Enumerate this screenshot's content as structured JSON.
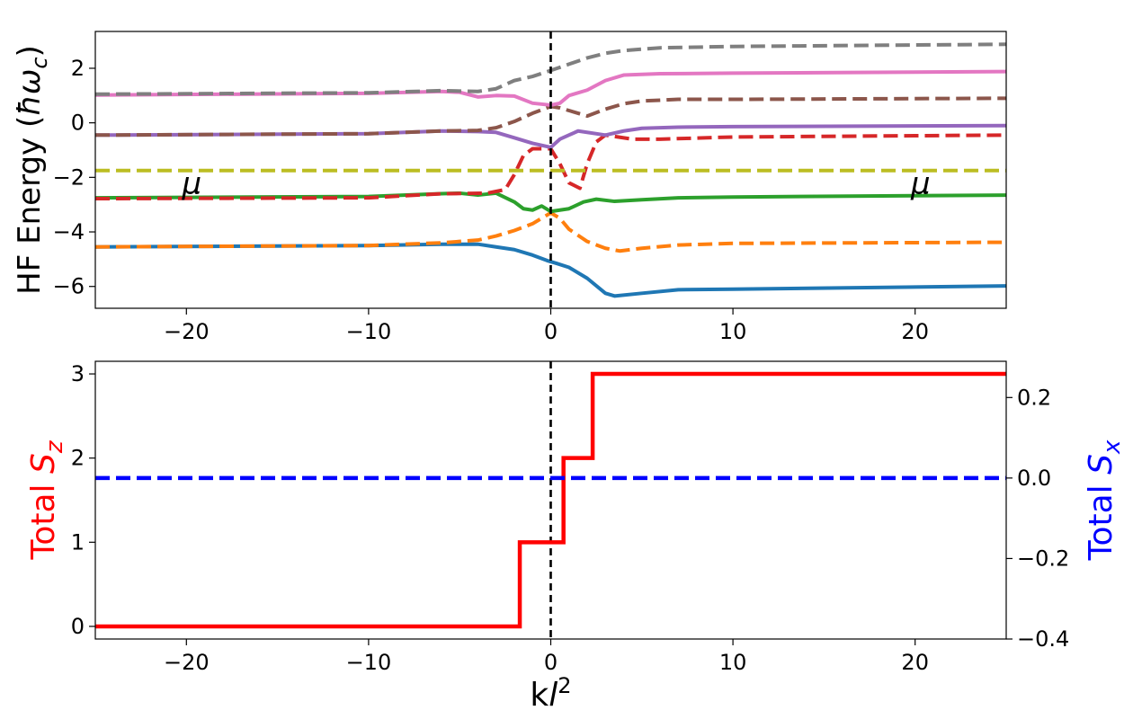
{
  "chart_data": [
    {
      "type": "line",
      "panel": "top",
      "title": "",
      "xlabel": "",
      "ylabel": "HF Energy (ħω_c)",
      "ylabel_parts": [
        "HF Energy (",
        "ħω",
        "c",
        ")"
      ],
      "xlim": [
        -25,
        25
      ],
      "ylim": [
        -6.8,
        3.35
      ],
      "xticks": [
        -20,
        -10,
        0,
        10,
        20
      ],
      "xtick_labels": [
        "−20",
        "−10",
        "0",
        "10",
        "20"
      ],
      "yticks": [
        -6,
        -4,
        -2,
        0,
        2
      ],
      "ytick_labels": [
        "−6",
        "−4",
        "−2",
        "0",
        "2"
      ],
      "grid": false,
      "legend": "none",
      "vline": {
        "x": 0,
        "style": "dashed",
        "color": "#000000"
      },
      "annotations": [
        {
          "text": "μ",
          "x": -19.7,
          "y": -2.2
        },
        {
          "text": "μ",
          "x": 20.3,
          "y": -2.2
        }
      ],
      "series": [
        {
          "color": "#1f77b4",
          "style": "solid",
          "points": [
            [
              -25,
              -4.55
            ],
            [
              -10,
              -4.5
            ],
            [
              -6,
              -4.45
            ],
            [
              -4,
              -4.45
            ],
            [
              -3,
              -4.55
            ],
            [
              -2,
              -4.65
            ],
            [
              -1,
              -4.85
            ],
            [
              -0.2,
              -5.05
            ],
            [
              0.3,
              -5.15
            ],
            [
              1,
              -5.3
            ],
            [
              2,
              -5.7
            ],
            [
              3,
              -6.25
            ],
            [
              3.5,
              -6.35
            ],
            [
              5,
              -6.25
            ],
            [
              7,
              -6.12
            ],
            [
              10,
              -6.1
            ],
            [
              25,
              -5.98
            ]
          ]
        },
        {
          "color": "#ff7f0e",
          "style": "dashed",
          "points": [
            [
              -25,
              -4.55
            ],
            [
              -10,
              -4.5
            ],
            [
              -6,
              -4.4
            ],
            [
              -4,
              -4.3
            ],
            [
              -3,
              -4.15
            ],
            [
              -2,
              -3.95
            ],
            [
              -1,
              -3.7
            ],
            [
              0,
              -3.3
            ],
            [
              0.5,
              -3.5
            ],
            [
              1,
              -3.9
            ],
            [
              2,
              -4.35
            ],
            [
              3,
              -4.6
            ],
            [
              3.8,
              -4.7
            ],
            [
              5,
              -4.6
            ],
            [
              7,
              -4.48
            ],
            [
              10,
              -4.42
            ],
            [
              25,
              -4.38
            ]
          ]
        },
        {
          "color": "#2ca02c",
          "style": "solid",
          "points": [
            [
              -25,
              -2.75
            ],
            [
              -10,
              -2.7
            ],
            [
              -6,
              -2.6
            ],
            [
              -5,
              -2.58
            ],
            [
              -4,
              -2.65
            ],
            [
              -3,
              -2.58
            ],
            [
              -2,
              -2.9
            ],
            [
              -1.5,
              -3.15
            ],
            [
              -1,
              -3.2
            ],
            [
              -0.5,
              -3.05
            ],
            [
              0,
              -3.25
            ],
            [
              1,
              -3.15
            ],
            [
              1.8,
              -2.9
            ],
            [
              2.5,
              -2.8
            ],
            [
              3.5,
              -2.88
            ],
            [
              5,
              -2.82
            ],
            [
              7,
              -2.75
            ],
            [
              10,
              -2.72
            ],
            [
              25,
              -2.65
            ]
          ]
        },
        {
          "color": "#d62728",
          "style": "dashed",
          "points": [
            [
              -25,
              -2.78
            ],
            [
              -10,
              -2.75
            ],
            [
              -6,
              -2.6
            ],
            [
              -3.5,
              -2.58
            ],
            [
              -2.5,
              -2.45
            ],
            [
              -2,
              -1.9
            ],
            [
              -1.5,
              -1.2
            ],
            [
              -1,
              -0.95
            ],
            [
              0,
              -0.95
            ],
            [
              0.5,
              -1.5
            ],
            [
              1,
              -2.2
            ],
            [
              1.6,
              -2.4
            ],
            [
              2,
              -1.5
            ],
            [
              2.5,
              -0.7
            ],
            [
              3,
              -0.45
            ],
            [
              4.5,
              -0.6
            ],
            [
              6,
              -0.6
            ],
            [
              10,
              -0.52
            ],
            [
              25,
              -0.45
            ]
          ]
        },
        {
          "color": "#9467bd",
          "style": "solid",
          "points": [
            [
              -25,
              -0.45
            ],
            [
              -10,
              -0.4
            ],
            [
              -6,
              -0.3
            ],
            [
              -4,
              -0.32
            ],
            [
              -3,
              -0.35
            ],
            [
              -2,
              -0.55
            ],
            [
              -1,
              -0.75
            ],
            [
              0,
              -0.9
            ],
            [
              0.5,
              -0.6
            ],
            [
              1.5,
              -0.3
            ],
            [
              3,
              -0.45
            ],
            [
              4,
              -0.3
            ],
            [
              5,
              -0.2
            ],
            [
              7,
              -0.16
            ],
            [
              10,
              -0.14
            ],
            [
              25,
              -0.1
            ]
          ]
        },
        {
          "color": "#8c564b",
          "style": "dashed",
          "points": [
            [
              -25,
              -0.45
            ],
            [
              -10,
              -0.4
            ],
            [
              -6,
              -0.3
            ],
            [
              -4,
              -0.28
            ],
            [
              -3,
              -0.18
            ],
            [
              -2,
              0.05
            ],
            [
              -1,
              0.35
            ],
            [
              0,
              0.6
            ],
            [
              0.5,
              0.55
            ],
            [
              1,
              0.45
            ],
            [
              2,
              0.25
            ],
            [
              3,
              0.5
            ],
            [
              4,
              0.7
            ],
            [
              5,
              0.8
            ],
            [
              7,
              0.86
            ],
            [
              10,
              0.86
            ],
            [
              25,
              0.9
            ]
          ]
        },
        {
          "color": "#e377c2",
          "style": "solid",
          "points": [
            [
              -25,
              1.02
            ],
            [
              -10,
              1.08
            ],
            [
              -6,
              1.15
            ],
            [
              -5,
              1.12
            ],
            [
              -4,
              0.95
            ],
            [
              -3,
              1.0
            ],
            [
              -2,
              0.98
            ],
            [
              -1,
              0.72
            ],
            [
              0,
              0.65
            ],
            [
              0.5,
              0.72
            ],
            [
              1,
              1.0
            ],
            [
              2,
              1.2
            ],
            [
              3,
              1.55
            ],
            [
              4,
              1.75
            ],
            [
              6,
              1.8
            ],
            [
              10,
              1.82
            ],
            [
              25,
              1.88
            ]
          ]
        },
        {
          "color": "#7f7f7f",
          "style": "dashed",
          "points": [
            [
              -25,
              1.05
            ],
            [
              -10,
              1.1
            ],
            [
              -6,
              1.18
            ],
            [
              -4,
              1.15
            ],
            [
              -3,
              1.25
            ],
            [
              -2,
              1.55
            ],
            [
              -1,
              1.7
            ],
            [
              0,
              1.92
            ],
            [
              1,
              2.15
            ],
            [
              2,
              2.38
            ],
            [
              3,
              2.55
            ],
            [
              4,
              2.65
            ],
            [
              6,
              2.75
            ],
            [
              10,
              2.8
            ],
            [
              25,
              2.88
            ]
          ]
        },
        {
          "color": "#bcbd22",
          "style": "dashed",
          "points": [
            [
              -25,
              -1.75
            ],
            [
              25,
              -1.75
            ]
          ]
        }
      ]
    },
    {
      "type": "line",
      "panel": "bottom",
      "title": "",
      "xlabel": "kl²",
      "xlabel_parts": [
        "k",
        "l",
        "2"
      ],
      "ylabel_left": "Total S_z",
      "ylabel_left_parts": [
        "Total ",
        "S",
        "z"
      ],
      "ylabel_right": "Total S_x",
      "ylabel_right_parts": [
        "Total ",
        "S",
        "x"
      ],
      "xlim": [
        -25,
        25
      ],
      "ylim_left": [
        -0.15,
        3.15
      ],
      "ylim_right": [
        -0.4,
        0.29
      ],
      "xticks": [
        -20,
        -10,
        0,
        10,
        20
      ],
      "xtick_labels": [
        "−20",
        "−10",
        "0",
        "10",
        "20"
      ],
      "yticks_left": [
        0,
        1,
        2,
        3
      ],
      "ytick_labels_left": [
        "0",
        "1",
        "2",
        "3"
      ],
      "yticks_right": [
        0.2,
        0.0,
        -0.2,
        -0.4
      ],
      "ytick_labels_right": [
        "0.2",
        "0.0",
        "−0.2",
        "−0.4"
      ],
      "grid": false,
      "legend": "none",
      "vline": {
        "x": 0,
        "style": "dashed",
        "color": "#000000"
      },
      "series": [
        {
          "name": "Total S_z",
          "axis": "left",
          "color": "#ff0000",
          "style": "solid",
          "points": [
            [
              -25,
              0
            ],
            [
              -1.7,
              0
            ],
            [
              -1.7,
              1
            ],
            [
              0.7,
              1
            ],
            [
              0.7,
              2
            ],
            [
              2.3,
              2
            ],
            [
              2.3,
              3
            ],
            [
              25,
              3
            ]
          ]
        },
        {
          "name": "Total S_x",
          "axis": "right",
          "color": "#0000ff",
          "style": "dashed",
          "points": [
            [
              -25,
              0.0
            ],
            [
              25,
              0.0
            ]
          ]
        }
      ]
    }
  ]
}
